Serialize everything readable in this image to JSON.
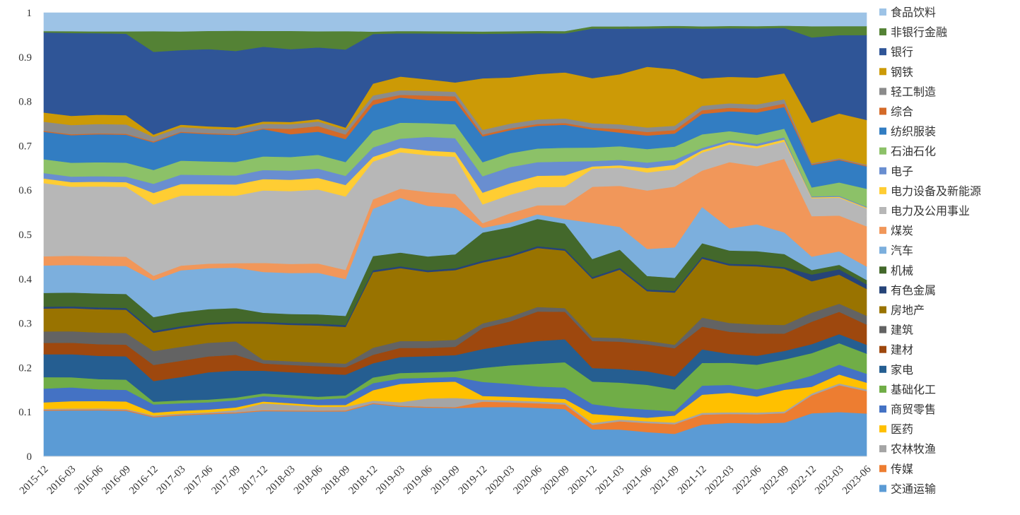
{
  "chart_data": {
    "type": "area",
    "stacked": true,
    "normalized": true,
    "title": "",
    "xlabel": "",
    "ylabel": "",
    "ylim": [
      0,
      1
    ],
    "yticks": [
      "0",
      "0.1",
      "0.2",
      "0.3",
      "0.4",
      "0.5",
      "0.6",
      "0.7",
      "0.8",
      "0.9",
      "1"
    ],
    "grid": false,
    "legend_position": "right",
    "x": [
      "2015-12",
      "2016-03",
      "2016-06",
      "2016-09",
      "2016-12",
      "2017-03",
      "2017-06",
      "2017-09",
      "2017-12",
      "2018-03",
      "2018-06",
      "2018-09",
      "2018-12",
      "2019-03",
      "2019-06",
      "2019-09",
      "2019-12",
      "2020-03",
      "2020-06",
      "2020-09",
      "2020-12",
      "2021-03",
      "2021-06",
      "2021-09",
      "2021-12",
      "2022-03",
      "2022-06",
      "2022-09",
      "2022-12",
      "2023-03",
      "2023-06"
    ],
    "xticks": [
      "2015-12",
      "2016-03",
      "2016-06",
      "2016-09",
      "2016-12",
      "2017-03",
      "2017-06",
      "2017-09",
      "2017-12",
      "2018-03",
      "2018-06",
      "2018-09",
      "2018-12",
      "2019-03",
      "2019-06",
      "2019-09",
      "2019-12",
      "2020-03",
      "2020-06",
      "2020-09",
      "2020-12",
      "2021-03",
      "2021-06",
      "2021-09",
      "2021-12",
      "2022-03",
      "2022-06",
      "2022-09",
      "2022-12",
      "2023-03",
      "2023-06"
    ],
    "series": [
      {
        "name": "交通运输",
        "color": "#5B9BD5",
        "values": [
          0.1,
          0.1,
          0.099,
          0.098,
          0.085,
          0.088,
          0.093,
          0.096,
          0.1,
          0.099,
          0.097,
          0.098,
          0.111,
          0.109,
          0.106,
          0.104,
          0.105,
          0.107,
          0.107,
          0.103,
          0.06,
          0.059,
          0.054,
          0.052,
          0.07,
          0.076,
          0.074,
          0.078,
          0.096,
          0.099,
          0.096
        ]
      },
      {
        "name": "传媒",
        "color": "#ED7D31",
        "values": [
          0.002,
          0.002,
          0.002,
          0.002,
          0.002,
          0.002,
          0.002,
          0.002,
          0.002,
          0.002,
          0.002,
          0.002,
          0.002,
          0.002,
          0.002,
          0.002,
          0.012,
          0.01,
          0.01,
          0.01,
          0.01,
          0.018,
          0.02,
          0.022,
          0.022,
          0.02,
          0.02,
          0.022,
          0.04,
          0.06,
          0.05
        ]
      },
      {
        "name": "农林牧渔",
        "color": "#A5A5A5",
        "values": [
          0.002,
          0.002,
          0.002,
          0.002,
          0.002,
          0.002,
          0.002,
          0.005,
          0.015,
          0.012,
          0.008,
          0.008,
          0.005,
          0.008,
          0.018,
          0.02,
          0.004,
          0.004,
          0.004,
          0.004,
          0.004,
          0.004,
          0.004,
          0.004,
          0.004,
          0.004,
          0.004,
          0.004,
          0.004,
          0.004,
          0.004
        ]
      },
      {
        "name": "医药",
        "color": "#FFC000",
        "values": [
          0.014,
          0.016,
          0.016,
          0.016,
          0.006,
          0.006,
          0.006,
          0.006,
          0.004,
          0.004,
          0.004,
          0.004,
          0.022,
          0.04,
          0.035,
          0.035,
          0.008,
          0.008,
          0.008,
          0.008,
          0.02,
          0.008,
          0.008,
          0.016,
          0.04,
          0.044,
          0.036,
          0.05,
          0.015,
          0.02,
          0.015
        ]
      },
      {
        "name": "商贸零售",
        "color": "#4472C4",
        "values": [
          0.03,
          0.03,
          0.025,
          0.025,
          0.018,
          0.016,
          0.016,
          0.016,
          0.012,
          0.012,
          0.012,
          0.015,
          0.015,
          0.012,
          0.01,
          0.01,
          0.03,
          0.028,
          0.025,
          0.025,
          0.022,
          0.018,
          0.018,
          0.01,
          0.02,
          0.018,
          0.016,
          0.015,
          0.025,
          0.022,
          0.02
        ]
      },
      {
        "name": "基础化工",
        "color": "#70AD47",
        "values": [
          0.025,
          0.022,
          0.022,
          0.022,
          0.006,
          0.006,
          0.006,
          0.006,
          0.006,
          0.006,
          0.006,
          0.006,
          0.012,
          0.012,
          0.012,
          0.012,
          0.03,
          0.04,
          0.05,
          0.055,
          0.05,
          0.055,
          0.055,
          0.05,
          0.05,
          0.05,
          0.055,
          0.055,
          0.05,
          0.048,
          0.045
        ]
      },
      {
        "name": "家电",
        "color": "#255E91",
        "values": [
          0.05,
          0.05,
          0.05,
          0.05,
          0.045,
          0.05,
          0.06,
          0.06,
          0.05,
          0.05,
          0.05,
          0.045,
          0.03,
          0.035,
          0.035,
          0.035,
          0.04,
          0.045,
          0.05,
          0.05,
          0.03,
          0.03,
          0.03,
          0.03,
          0.03,
          0.02,
          0.02,
          0.02,
          0.02,
          0.02,
          0.02
        ]
      },
      {
        "name": "建材",
        "color": "#9E480E",
        "values": [
          0.025,
          0.025,
          0.025,
          0.025,
          0.035,
          0.035,
          0.035,
          0.035,
          0.016,
          0.016,
          0.016,
          0.016,
          0.018,
          0.02,
          0.018,
          0.018,
          0.045,
          0.05,
          0.065,
          0.06,
          0.06,
          0.06,
          0.06,
          0.065,
          0.05,
          0.05,
          0.05,
          0.04,
          0.05,
          0.05,
          0.045
        ]
      },
      {
        "name": "建筑",
        "color": "#636363",
        "values": [
          0.025,
          0.025,
          0.025,
          0.025,
          0.03,
          0.03,
          0.03,
          0.03,
          0.008,
          0.008,
          0.008,
          0.008,
          0.015,
          0.015,
          0.015,
          0.015,
          0.01,
          0.01,
          0.01,
          0.008,
          0.008,
          0.008,
          0.008,
          0.008,
          0.02,
          0.02,
          0.02,
          0.02,
          0.02,
          0.018,
          0.02
        ]
      },
      {
        "name": "房地产",
        "color": "#997300",
        "values": [
          0.05,
          0.05,
          0.05,
          0.05,
          0.04,
          0.04,
          0.04,
          0.04,
          0.08,
          0.08,
          0.08,
          0.08,
          0.16,
          0.16,
          0.15,
          0.15,
          0.13,
          0.13,
          0.13,
          0.125,
          0.13,
          0.15,
          0.11,
          0.12,
          0.13,
          0.13,
          0.13,
          0.13,
          0.07,
          0.065,
          0.06
        ]
      },
      {
        "name": "有色金属",
        "color": "#264478",
        "values": [
          0.004,
          0.004,
          0.004,
          0.004,
          0.004,
          0.004,
          0.004,
          0.004,
          0.004,
          0.004,
          0.004,
          0.004,
          0.004,
          0.004,
          0.004,
          0.004,
          0.004,
          0.004,
          0.004,
          0.004,
          0.004,
          0.004,
          0.004,
          0.004,
          0.004,
          0.004,
          0.004,
          0.004,
          0.015,
          0.012,
          0.01
        ]
      },
      {
        "name": "机械",
        "color": "#43682B",
        "values": [
          0.03,
          0.03,
          0.03,
          0.03,
          0.03,
          0.03,
          0.03,
          0.03,
          0.02,
          0.02,
          0.02,
          0.02,
          0.03,
          0.03,
          0.03,
          0.03,
          0.06,
          0.06,
          0.06,
          0.055,
          0.04,
          0.04,
          0.03,
          0.03,
          0.03,
          0.03,
          0.03,
          0.03,
          0.01,
          0.01,
          0.01
        ]
      },
      {
        "name": "汽车",
        "color": "#7CAFDD",
        "values": [
          0.06,
          0.06,
          0.06,
          0.06,
          0.08,
          0.09,
          0.09,
          0.09,
          0.09,
          0.09,
          0.09,
          0.08,
          0.1,
          0.12,
          0.11,
          0.1,
          0.01,
          0.01,
          0.01,
          0.01,
          0.08,
          0.05,
          0.06,
          0.07,
          0.08,
          0.05,
          0.06,
          0.05,
          0.03,
          0.03,
          0.03
        ]
      },
      {
        "name": "煤炭",
        "color": "#F1975A",
        "values": [
          0.02,
          0.02,
          0.02,
          0.02,
          0.01,
          0.01,
          0.01,
          0.01,
          0.02,
          0.02,
          0.02,
          0.02,
          0.02,
          0.02,
          0.03,
          0.03,
          0.01,
          0.02,
          0.02,
          0.03,
          0.08,
          0.09,
          0.13,
          0.14,
          0.08,
          0.15,
          0.13,
          0.17,
          0.09,
          0.08,
          0.09
        ]
      },
      {
        "name": "电力及公用事业",
        "color": "#B7B7B7",
        "values": [
          0.16,
          0.15,
          0.15,
          0.15,
          0.155,
          0.15,
          0.15,
          0.15,
          0.16,
          0.16,
          0.16,
          0.16,
          0.08,
          0.08,
          0.08,
          0.08,
          0.04,
          0.04,
          0.04,
          0.04,
          0.04,
          0.04,
          0.04,
          0.04,
          0.04,
          0.04,
          0.04,
          0.04,
          0.04,
          0.04,
          0.04
        ]
      },
      {
        "name": "电力设备及新能源",
        "color": "#FFCD33",
        "values": [
          0.01,
          0.01,
          0.01,
          0.01,
          0.025,
          0.025,
          0.025,
          0.025,
          0.025,
          0.025,
          0.025,
          0.025,
          0.01,
          0.01,
          0.01,
          0.01,
          0.025,
          0.025,
          0.025,
          0.025,
          0.005,
          0.005,
          0.01,
          0.01,
          0.005,
          0.005,
          0.005,
          0.005,
          0.002,
          0.002,
          0.002
        ]
      },
      {
        "name": "电子",
        "color": "#698ED0",
        "values": [
          0.012,
          0.012,
          0.012,
          0.012,
          0.02,
          0.02,
          0.02,
          0.02,
          0.02,
          0.02,
          0.02,
          0.02,
          0.02,
          0.02,
          0.03,
          0.03,
          0.035,
          0.035,
          0.03,
          0.03,
          0.012,
          0.012,
          0.012,
          0.012,
          0.005,
          0.005,
          0.005,
          0.005,
          0.002,
          0.002,
          0.002
        ]
      },
      {
        "name": "石油石化",
        "color": "#8CC168",
        "values": [
          0.03,
          0.03,
          0.03,
          0.03,
          0.03,
          0.03,
          0.03,
          0.03,
          0.03,
          0.03,
          0.03,
          0.03,
          0.035,
          0.035,
          0.03,
          0.03,
          0.03,
          0.03,
          0.03,
          0.03,
          0.03,
          0.03,
          0.03,
          0.03,
          0.03,
          0.02,
          0.02,
          0.02,
          0.02,
          0.03,
          0.04
        ]
      },
      {
        "name": "纺织服装",
        "color": "#327DC2",
        "values": [
          0.06,
          0.06,
          0.06,
          0.06,
          0.06,
          0.06,
          0.06,
          0.06,
          0.06,
          0.05,
          0.05,
          0.05,
          0.055,
          0.055,
          0.05,
          0.05,
          0.055,
          0.05,
          0.05,
          0.05,
          0.04,
          0.03,
          0.03,
          0.03,
          0.045,
          0.045,
          0.05,
          0.05,
          0.05,
          0.05,
          0.05
        ]
      },
      {
        "name": "综合",
        "color": "#D46A28",
        "values": [
          0.002,
          0.002,
          0.002,
          0.002,
          0.002,
          0.002,
          0.002,
          0.002,
          0.002,
          0.012,
          0.012,
          0.01,
          0.01,
          0.006,
          0.01,
          0.01,
          0.004,
          0.004,
          0.004,
          0.004,
          0.004,
          0.008,
          0.008,
          0.008,
          0.008,
          0.008,
          0.008,
          0.008,
          0.002,
          0.002,
          0.002
        ]
      },
      {
        "name": "轻工制造",
        "color": "#8B8B8B",
        "values": [
          0.02,
          0.02,
          0.02,
          0.02,
          0.01,
          0.01,
          0.01,
          0.01,
          0.01,
          0.01,
          0.01,
          0.01,
          0.01,
          0.01,
          0.01,
          0.01,
          0.01,
          0.01,
          0.01,
          0.01,
          0.01,
          0.01,
          0.01,
          0.01,
          0.01,
          0.01,
          0.01,
          0.01,
          0.002,
          0.002,
          0.002
        ]
      },
      {
        "name": "钢铁",
        "color": "#CC9A06",
        "values": [
          0.02,
          0.02,
          0.02,
          0.02,
          0.005,
          0.005,
          0.005,
          0.005,
          0.005,
          0.005,
          0.005,
          0.005,
          0.025,
          0.03,
          0.025,
          0.02,
          0.11,
          0.1,
          0.1,
          0.1,
          0.1,
          0.11,
          0.135,
          0.13,
          0.06,
          0.06,
          0.06,
          0.06,
          0.09,
          0.1,
          0.1
        ]
      },
      {
        "name": "银行",
        "color": "#2F5597",
        "values": [
          0.175,
          0.18,
          0.175,
          0.175,
          0.18,
          0.16,
          0.17,
          0.17,
          0.165,
          0.16,
          0.155,
          0.17,
          0.105,
          0.095,
          0.1,
          0.105,
          0.095,
          0.095,
          0.09,
          0.085,
          0.11,
          0.1,
          0.085,
          0.095,
          0.11,
          0.11,
          0.11,
          0.105,
          0.19,
          0.175,
          0.19
        ]
      },
      {
        "name": "非银行金融",
        "color": "#548235",
        "values": [
          0.003,
          0.004,
          0.004,
          0.005,
          0.045,
          0.04,
          0.04,
          0.045,
          0.035,
          0.04,
          0.035,
          0.04,
          0.005,
          0.005,
          0.005,
          0.005,
          0.005,
          0.005,
          0.005,
          0.005,
          0.005,
          0.005,
          0.005,
          0.005,
          0.005,
          0.005,
          0.005,
          0.005,
          0.025,
          0.02,
          0.02
        ]
      },
      {
        "name": "食品饮料",
        "color": "#9DC3E6",
        "values": [
          0.04,
          0.04,
          0.04,
          0.04,
          0.04,
          0.04,
          0.04,
          0.04,
          0.04,
          0.04,
          0.04,
          0.04,
          0.04,
          0.04,
          0.04,
          0.04,
          0.04,
          0.04,
          0.04,
          0.04,
          0.03,
          0.03,
          0.03,
          0.03,
          0.03,
          0.03,
          0.03,
          0.03,
          0.03,
          0.03,
          0.03
        ]
      }
    ]
  }
}
